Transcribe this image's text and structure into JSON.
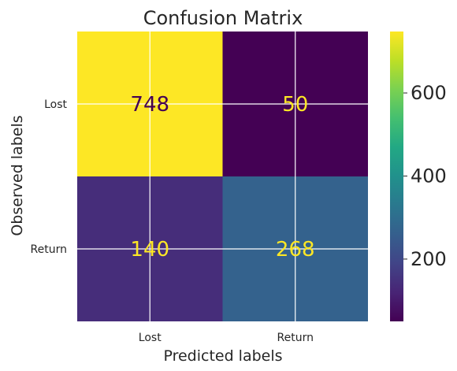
{
  "chart_data": {
    "type": "heatmap",
    "title": "Confusion Matrix",
    "xlabel": "Predicted labels",
    "ylabel": "Observed labels",
    "x_categories": [
      "Lost",
      "Return"
    ],
    "y_categories": [
      "Lost",
      "Return"
    ],
    "values": [
      [
        748,
        50
      ],
      [
        140,
        268
      ]
    ],
    "colorbar": {
      "colormap": "viridis",
      "range": [
        50,
        748
      ],
      "ticks": [
        200,
        400,
        600
      ]
    },
    "grid": true,
    "cell_text_colors": {
      "on_dark": "#fde725",
      "on_light": "#440154"
    }
  }
}
